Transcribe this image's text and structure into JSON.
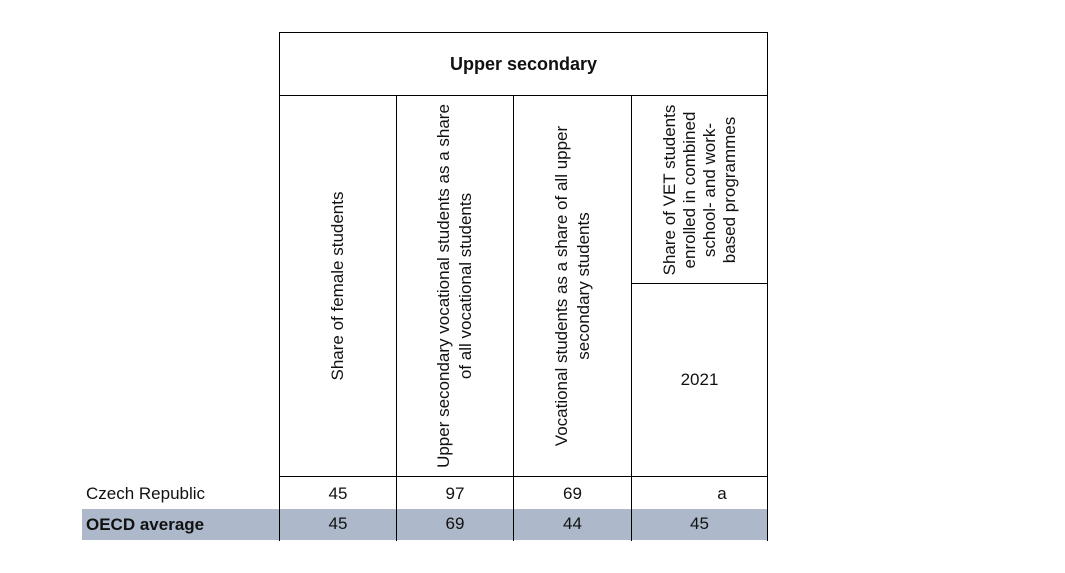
{
  "table": {
    "group_header": "Upper secondary",
    "columns": [
      {
        "label": "Share of female students"
      },
      {
        "label": "Upper secondary vocational students as a share of all vocational students"
      },
      {
        "label": "Vocational students as a share of all upper secondary students"
      },
      {
        "label": "Share of VET students enrolled in combined school- and work-based programmes"
      }
    ],
    "year_label": "2021",
    "rows": [
      {
        "name": "Czech Republic",
        "values": [
          "45",
          "97",
          "69",
          "a"
        ]
      },
      {
        "name": "OECD average",
        "values": [
          "45",
          "69",
          "44",
          "45"
        ]
      }
    ],
    "colors": {
      "highlight_row": "#adb9ca",
      "border": "#000000"
    }
  }
}
